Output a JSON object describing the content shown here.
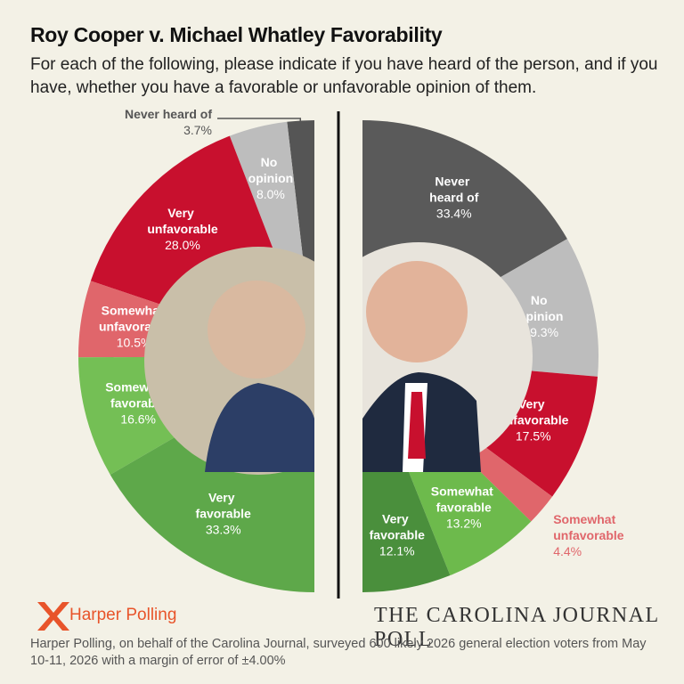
{
  "header": {
    "title": "Roy Cooper v. Michael Whatley Favorability",
    "subtitle": "For each of the following, please indicate if you have heard of the person, and if you have, whether you have a favorable or unfavorable opinion of them."
  },
  "chart_data": [
    {
      "type": "pie",
      "categories": [
        "Never heard of",
        "No opinion",
        "Very unfavorable",
        "Somewhat unfavorable",
        "Somewhat favorable",
        "Very favorable"
      ],
      "values": [
        3.7,
        8.0,
        28.0,
        10.5,
        16.6,
        33.3
      ],
      "value_labels": [
        "3.7%",
        "8.0%",
        "28.0%",
        "10.5%",
        "16.6%",
        "33.3%"
      ],
      "colors": [
        "#555555",
        "#bdbdbd",
        "#c8102e",
        "#e0666b",
        "#74bf55",
        "#5ea84a"
      ]
    },
    {
      "type": "pie",
      "categories": [
        "Never heard of",
        "No opinion",
        "Very unfavorable",
        "Somewhat unfavorable",
        "Somewhat favorable",
        "Very favorable"
      ],
      "values": [
        33.4,
        19.3,
        17.5,
        4.4,
        13.2,
        12.1
      ],
      "value_labels": [
        "33.4%",
        "19.3%",
        "17.5%",
        "4.4%",
        "13.2%",
        "12.1%"
      ],
      "colors": [
        "#5a5a5a",
        "#bdbdbd",
        "#c8102e",
        "#e0666b",
        "#6dba4c",
        "#4a8f3c"
      ]
    }
  ],
  "footer": {
    "logo_left": "Harper Polling",
    "logo_right": "THE CAROLINA JOURNAL POLL",
    "note": "Harper Polling, on behalf of the Carolina Journal, surveyed 600 likely 2026 general election voters from May 10-11, 2026 with a margin of error of ±4.00%"
  }
}
